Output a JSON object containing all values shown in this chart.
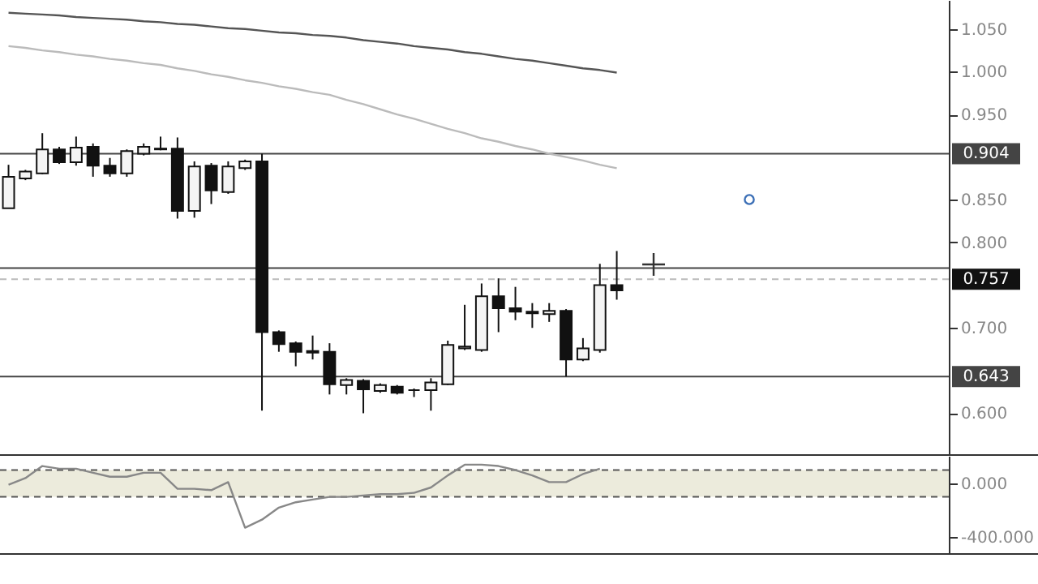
{
  "chart_data": [
    {
      "type": "candlestick",
      "categories": [
        null,
        null,
        null,
        null,
        null,
        null,
        null,
        null,
        null,
        null,
        null,
        null,
        null,
        null,
        null,
        null,
        null,
        null,
        null,
        null,
        null,
        null,
        null,
        null,
        null,
        null,
        null,
        null,
        null,
        null,
        null,
        null,
        null,
        null,
        null,
        null,
        null
      ],
      "ohlc": [
        [
          0.84,
          0.891,
          0.84,
          0.877
        ],
        [
          0.875,
          0.885,
          0.873,
          0.883
        ],
        [
          0.881,
          0.928,
          0.88,
          0.909
        ],
        [
          0.909,
          0.912,
          0.892,
          0.894
        ],
        [
          0.894,
          0.924,
          0.89,
          0.911
        ],
        [
          0.912,
          0.916,
          0.877,
          0.89
        ],
        [
          0.89,
          0.899,
          0.877,
          0.881
        ],
        [
          0.881,
          0.909,
          0.877,
          0.907
        ],
        [
          0.904,
          0.916,
          0.902,
          0.912
        ],
        [
          0.909,
          0.924,
          0.908,
          0.91
        ],
        [
          0.91,
          0.923,
          0.828,
          0.837
        ],
        [
          0.837,
          0.895,
          0.829,
          0.889
        ],
        [
          0.89,
          0.893,
          0.845,
          0.861
        ],
        [
          0.859,
          0.895,
          0.857,
          0.889
        ],
        [
          0.887,
          0.897,
          0.885,
          0.895
        ],
        [
          0.895,
          0.904,
          0.603,
          0.695
        ],
        [
          0.695,
          0.697,
          0.672,
          0.681
        ],
        [
          0.682,
          0.684,
          0.655,
          0.672
        ],
        [
          0.673,
          0.691,
          0.663,
          0.671
        ],
        [
          0.672,
          0.682,
          0.622,
          0.634
        ],
        [
          0.633,
          0.641,
          0.622,
          0.639
        ],
        [
          0.638,
          0.64,
          0.6,
          0.628
        ],
        [
          0.626,
          0.635,
          0.624,
          0.633
        ],
        [
          0.631,
          0.633,
          0.622,
          0.624
        ],
        [
          0.627,
          0.629,
          0.619,
          0.627
        ],
        [
          0.627,
          0.641,
          0.603,
          0.636
        ],
        [
          0.634,
          0.685,
          0.633,
          0.68
        ],
        [
          0.676,
          0.727,
          0.674,
          0.678
        ],
        [
          0.674,
          0.752,
          0.672,
          0.737
        ],
        [
          0.737,
          0.758,
          0.695,
          0.723
        ],
        [
          0.723,
          0.748,
          0.709,
          0.719
        ],
        [
          0.719,
          0.729,
          0.7,
          0.717
        ],
        [
          0.716,
          0.729,
          0.707,
          0.72
        ],
        [
          0.72,
          0.722,
          0.643,
          0.663
        ],
        [
          0.663,
          0.688,
          0.661,
          0.676
        ],
        [
          0.674,
          0.775,
          0.671,
          0.75
        ],
        [
          0.75,
          0.79,
          0.733,
          0.744
        ]
      ],
      "series": [
        {
          "type": "line",
          "color": "#555555",
          "values": [
            1.069,
            1.068,
            1.067,
            1.066,
            1.064,
            1.063,
            1.062,
            1.061,
            1.059,
            1.058,
            1.056,
            1.055,
            1.053,
            1.051,
            1.05,
            1.048,
            1.046,
            1.045,
            1.043,
            1.042,
            1.04,
            1.037,
            1.035,
            1.033,
            1.03,
            1.028,
            1.026,
            1.023,
            1.021,
            1.018,
            1.015,
            1.013,
            1.01,
            1.007,
            1.004,
            1.002,
            0.999
          ]
        },
        {
          "type": "line",
          "color": "#bbbbbb",
          "values": [
            1.03,
            1.028,
            1.025,
            1.023,
            1.02,
            1.018,
            1.015,
            1.013,
            1.01,
            1.008,
            1.004,
            1.001,
            0.997,
            0.994,
            0.99,
            0.987,
            0.983,
            0.98,
            0.976,
            0.973,
            0.967,
            0.962,
            0.956,
            0.95,
            0.945,
            0.939,
            0.933,
            0.928,
            0.922,
            0.918,
            0.913,
            0.909,
            0.904,
            0.9,
            0.896,
            0.891,
            0.887
          ]
        }
      ],
      "ref_lines": [
        {
          "axis": "y",
          "value": 0.904,
          "label": "0.904",
          "color": "#444444"
        },
        {
          "axis": "y",
          "value": 0.77,
          "color": "#444444"
        },
        {
          "axis": "y",
          "value": 0.643,
          "label": "0.643",
          "color": "#444444"
        },
        {
          "axis": "y",
          "value": 0.757,
          "label": "0.757",
          "line_style": "dashed",
          "color": "#bbbbbb"
        }
      ],
      "ylim": [
        0.552,
        1.084
      ],
      "yticks": [
        {
          "value": 0.6,
          "label": "0.600"
        },
        {
          "value": 0.7,
          "label": "0.700"
        },
        {
          "value": 0.8,
          "label": "0.800"
        },
        {
          "value": 0.85,
          "label": "0.850"
        },
        {
          "value": 0.95,
          "label": "0.950"
        },
        {
          "value": 1.0,
          "label": "1.000"
        },
        {
          "value": 1.05,
          "label": "1.050"
        }
      ],
      "tick_labels": "y",
      "grid": false
    },
    {
      "type": "line",
      "categories": [
        null,
        null,
        null,
        null,
        null,
        null,
        null,
        null,
        null,
        null,
        null,
        null,
        null,
        null,
        null,
        null,
        null,
        null,
        null,
        null,
        null,
        null,
        null,
        null,
        null,
        null,
        null,
        null,
        null,
        null,
        null,
        null,
        null,
        null,
        null,
        null,
        null
      ],
      "series": [
        {
          "color": "#888888",
          "values": [
            -10,
            40,
            130,
            110,
            110,
            80,
            50,
            50,
            80,
            80,
            -40,
            -40,
            -50,
            10,
            -330,
            -270,
            -180,
            -140,
            -120,
            -100,
            -100,
            -90,
            -80,
            -80,
            -70,
            -30,
            60,
            140,
            140,
            130,
            100,
            60,
            10,
            10,
            70,
            110,
            null
          ]
        }
      ],
      "bands": [
        {
          "axis": "y",
          "from": -100,
          "to": 100,
          "color": "#ecebdc"
        }
      ],
      "ref_lines": [
        {
          "axis": "y",
          "value": 100,
          "line_style": "dashed",
          "color": "#555555"
        },
        {
          "axis": "y",
          "value": -100,
          "line_style": "dashed",
          "color": "#555555"
        }
      ],
      "ylim": [
        -520,
        206
      ],
      "yticks": [
        {
          "value": 0,
          "label": "0.000"
        },
        {
          "value": -400,
          "label": "-400.000"
        }
      ],
      "tick_labels": "y",
      "grid": false
    }
  ]
}
